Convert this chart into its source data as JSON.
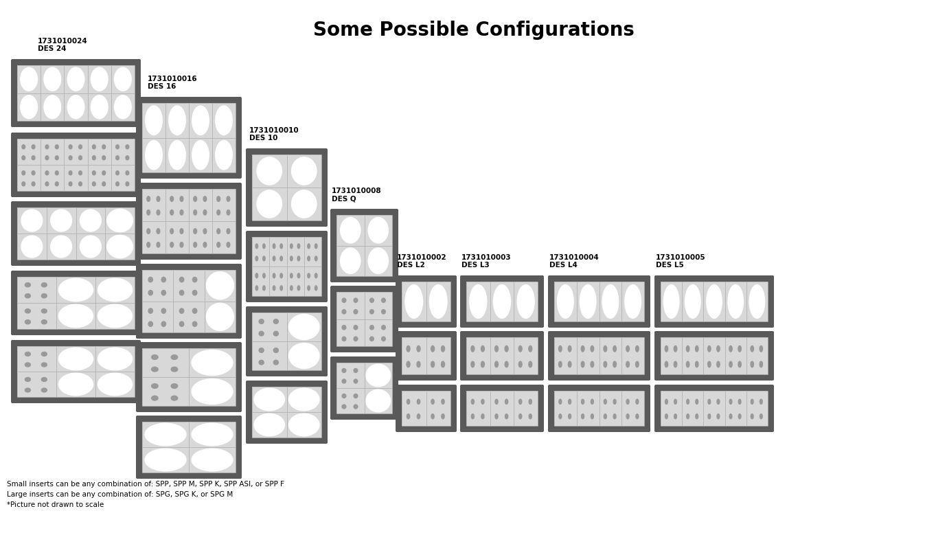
{
  "title": "Some Possible Configurations",
  "title_fontsize": 20,
  "title_fontweight": "bold",
  "bg_color": "#ffffff",
  "outer_color": "#595959",
  "inner_color": "#c8c8c8",
  "cell_color": "#d8d8d8",
  "small_dot_color": "#999999",
  "large_dot_color": "#ffffff",
  "footnotes": [
    "Small inserts can be any combination of: SPP, SPP M, SPP K, SPP ASI, or SPP F",
    "Large inserts can be any combination of: SPG, SPG K, or SPG M",
    "*Picture not drawn to scale"
  ],
  "label_fontsize": 7.5,
  "note_fontsize": 7.5
}
